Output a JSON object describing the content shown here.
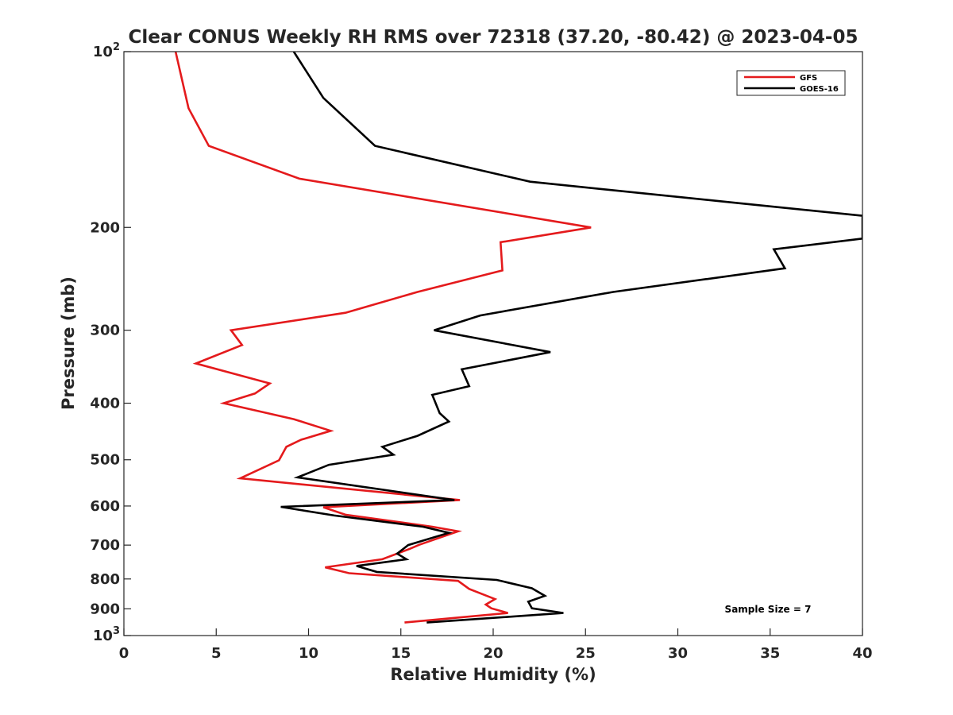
{
  "chart_data": {
    "type": "line",
    "title": "Clear CONUS Weekly RH RMS over 72318 (37.20, -80.42) @ 2023-04-05",
    "xlabel": "Relative Humidity (%)",
    "ylabel": "Pressure (mb)",
    "xlim": [
      0,
      40
    ],
    "ylim": [
      100,
      1000
    ],
    "y_scale": "log",
    "y_reversed": true,
    "grid": false,
    "legend_position": "top-right",
    "x_ticks": [
      {
        "value": 0,
        "label": "0"
      },
      {
        "value": 5,
        "label": "5"
      },
      {
        "value": 10,
        "label": "10"
      },
      {
        "value": 15,
        "label": "15"
      },
      {
        "value": 20,
        "label": "20"
      },
      {
        "value": 25,
        "label": "25"
      },
      {
        "value": 30,
        "label": "30"
      },
      {
        "value": 35,
        "label": "35"
      },
      {
        "value": 40,
        "label": "40"
      }
    ],
    "y_ticks": [
      {
        "value": 100,
        "base": "10",
        "exp": "2"
      },
      {
        "value": 200,
        "label": "200"
      },
      {
        "value": 300,
        "label": "300"
      },
      {
        "value": 400,
        "label": "400"
      },
      {
        "value": 500,
        "label": "500"
      },
      {
        "value": 600,
        "label": "600"
      },
      {
        "value": 700,
        "label": "700"
      },
      {
        "value": 800,
        "label": "800"
      },
      {
        "value": 900,
        "label": "900"
      },
      {
        "value": 1000,
        "base": "10",
        "exp": "3"
      }
    ],
    "series": [
      {
        "name": "GFS",
        "color": "#e41a1c",
        "points": [
          {
            "x": 2.8,
            "y": 100
          },
          {
            "x": 3.5,
            "y": 125
          },
          {
            "x": 4.6,
            "y": 145
          },
          {
            "x": 9.5,
            "y": 165
          },
          {
            "x": 25.3,
            "y": 200
          },
          {
            "x": 20.4,
            "y": 212
          },
          {
            "x": 20.5,
            "y": 237
          },
          {
            "x": 15.9,
            "y": 258
          },
          {
            "x": 12.0,
            "y": 280
          },
          {
            "x": 5.8,
            "y": 300
          },
          {
            "x": 6.4,
            "y": 318
          },
          {
            "x": 3.9,
            "y": 342
          },
          {
            "x": 7.9,
            "y": 370
          },
          {
            "x": 7.1,
            "y": 385
          },
          {
            "x": 5.4,
            "y": 400
          },
          {
            "x": 9.2,
            "y": 426
          },
          {
            "x": 11.2,
            "y": 446
          },
          {
            "x": 9.6,
            "y": 462
          },
          {
            "x": 8.8,
            "y": 475
          },
          {
            "x": 8.4,
            "y": 501
          },
          {
            "x": 6.3,
            "y": 538
          },
          {
            "x": 18.2,
            "y": 586
          },
          {
            "x": 10.8,
            "y": 603
          },
          {
            "x": 12.0,
            "y": 621
          },
          {
            "x": 16.7,
            "y": 651
          },
          {
            "x": 18.1,
            "y": 663
          },
          {
            "x": 16.0,
            "y": 699
          },
          {
            "x": 15.5,
            "y": 710
          },
          {
            "x": 14.0,
            "y": 740
          },
          {
            "x": 10.9,
            "y": 764
          },
          {
            "x": 12.2,
            "y": 782
          },
          {
            "x": 18.1,
            "y": 806
          },
          {
            "x": 18.7,
            "y": 832
          },
          {
            "x": 20.1,
            "y": 866
          },
          {
            "x": 19.6,
            "y": 885
          },
          {
            "x": 19.9,
            "y": 898
          },
          {
            "x": 20.8,
            "y": 915
          },
          {
            "x": 15.2,
            "y": 950
          }
        ]
      },
      {
        "name": "GOES-16",
        "color": "#000000",
        "points": [
          {
            "x": 9.2,
            "y": 100
          },
          {
            "x": 10.8,
            "y": 120
          },
          {
            "x": 13.6,
            "y": 145
          },
          {
            "x": 22.0,
            "y": 167
          },
          {
            "x": 33.5,
            "y": 182
          },
          {
            "x": 40.0,
            "y": 191
          },
          {
            "x": 40.0,
            "y": 209
          },
          {
            "x": 35.2,
            "y": 218
          },
          {
            "x": 35.8,
            "y": 235
          },
          {
            "x": 26.5,
            "y": 258
          },
          {
            "x": 19.3,
            "y": 283
          },
          {
            "x": 16.8,
            "y": 300
          },
          {
            "x": 23.1,
            "y": 327
          },
          {
            "x": 18.3,
            "y": 350
          },
          {
            "x": 18.7,
            "y": 374
          },
          {
            "x": 16.7,
            "y": 387
          },
          {
            "x": 17.1,
            "y": 416
          },
          {
            "x": 17.6,
            "y": 430
          },
          {
            "x": 15.9,
            "y": 455
          },
          {
            "x": 14.0,
            "y": 475
          },
          {
            "x": 14.6,
            "y": 490
          },
          {
            "x": 11.1,
            "y": 510
          },
          {
            "x": 9.4,
            "y": 536
          },
          {
            "x": 17.9,
            "y": 586
          },
          {
            "x": 8.5,
            "y": 602
          },
          {
            "x": 11.4,
            "y": 623
          },
          {
            "x": 16.2,
            "y": 651
          },
          {
            "x": 17.6,
            "y": 667
          },
          {
            "x": 15.4,
            "y": 700
          },
          {
            "x": 14.8,
            "y": 724
          },
          {
            "x": 15.3,
            "y": 740
          },
          {
            "x": 12.6,
            "y": 760
          },
          {
            "x": 13.7,
            "y": 778
          },
          {
            "x": 20.2,
            "y": 803
          },
          {
            "x": 22.1,
            "y": 830
          },
          {
            "x": 22.8,
            "y": 855
          },
          {
            "x": 21.9,
            "y": 875
          },
          {
            "x": 22.1,
            "y": 898
          },
          {
            "x": 23.8,
            "y": 915
          },
          {
            "x": 16.4,
            "y": 950
          }
        ]
      }
    ],
    "annotations": [
      {
        "text": "Sample Size = 7",
        "x": 35.5,
        "y": 900
      }
    ]
  }
}
